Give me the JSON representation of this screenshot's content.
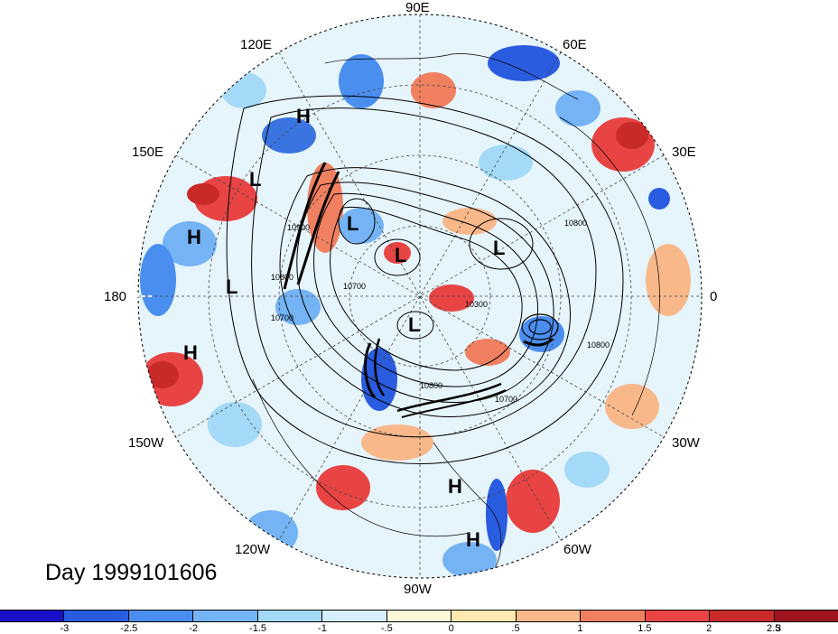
{
  "map": {
    "projection": "north polar stereographic",
    "longitude_labels": [
      {
        "text": "90E",
        "name": "lon-label-90e"
      },
      {
        "text": "60E",
        "name": "lon-label-60e"
      },
      {
        "text": "30E",
        "name": "lon-label-30e"
      },
      {
        "text": "0",
        "name": "lon-label-0"
      },
      {
        "text": "30W",
        "name": "lon-label-30w"
      },
      {
        "text": "60W",
        "name": "lon-label-60w"
      },
      {
        "text": "90W",
        "name": "lon-label-90w"
      },
      {
        "text": "120W",
        "name": "lon-label-120w"
      },
      {
        "text": "150W",
        "name": "lon-label-150w"
      },
      {
        "text": "180",
        "name": "lon-label-180"
      },
      {
        "text": "150E",
        "name": "lon-label-150e"
      },
      {
        "text": "120E",
        "name": "lon-label-120e"
      }
    ],
    "pressure_centers": [
      {
        "label": "H",
        "name": "high-center-east-asia"
      },
      {
        "label": "L",
        "name": "low-center-east-siberia"
      },
      {
        "label": "H",
        "name": "high-center-west-pacific"
      },
      {
        "label": "L",
        "name": "low-center-north-pacific"
      },
      {
        "label": "H",
        "name": "high-center-central-pacific"
      },
      {
        "label": "L",
        "name": "low-center-siberia"
      },
      {
        "label": "L",
        "name": "low-center-arctic"
      },
      {
        "label": "L",
        "name": "low-center-scandinavia"
      },
      {
        "label": "L",
        "name": "low-center-canada"
      },
      {
        "label": "H",
        "name": "high-center-caribbean"
      },
      {
        "label": "H",
        "name": "high-center-south-america"
      }
    ],
    "contour_labels": [
      "10800",
      "10800",
      "10300",
      "10700",
      "10800",
      "10700",
      "10800",
      "10900",
      "10700"
    ],
    "day_label": "Day 1999101606"
  },
  "colorbar": {
    "colors": [
      "#1a10c8",
      "#2a5ce0",
      "#4a8ff0",
      "#74b3f4",
      "#a4daf8",
      "#d6f0fb",
      "#fdf8d8",
      "#fde8b0",
      "#f8b88a",
      "#f08060",
      "#e84444",
      "#c82a2a",
      "#a01420"
    ],
    "ticks": [
      "-3",
      "-2.5",
      "-2",
      "-1.5",
      "-1",
      "-.5",
      "0",
      ".5",
      "1",
      "1.5",
      "2",
      "2.5",
      "3"
    ]
  }
}
